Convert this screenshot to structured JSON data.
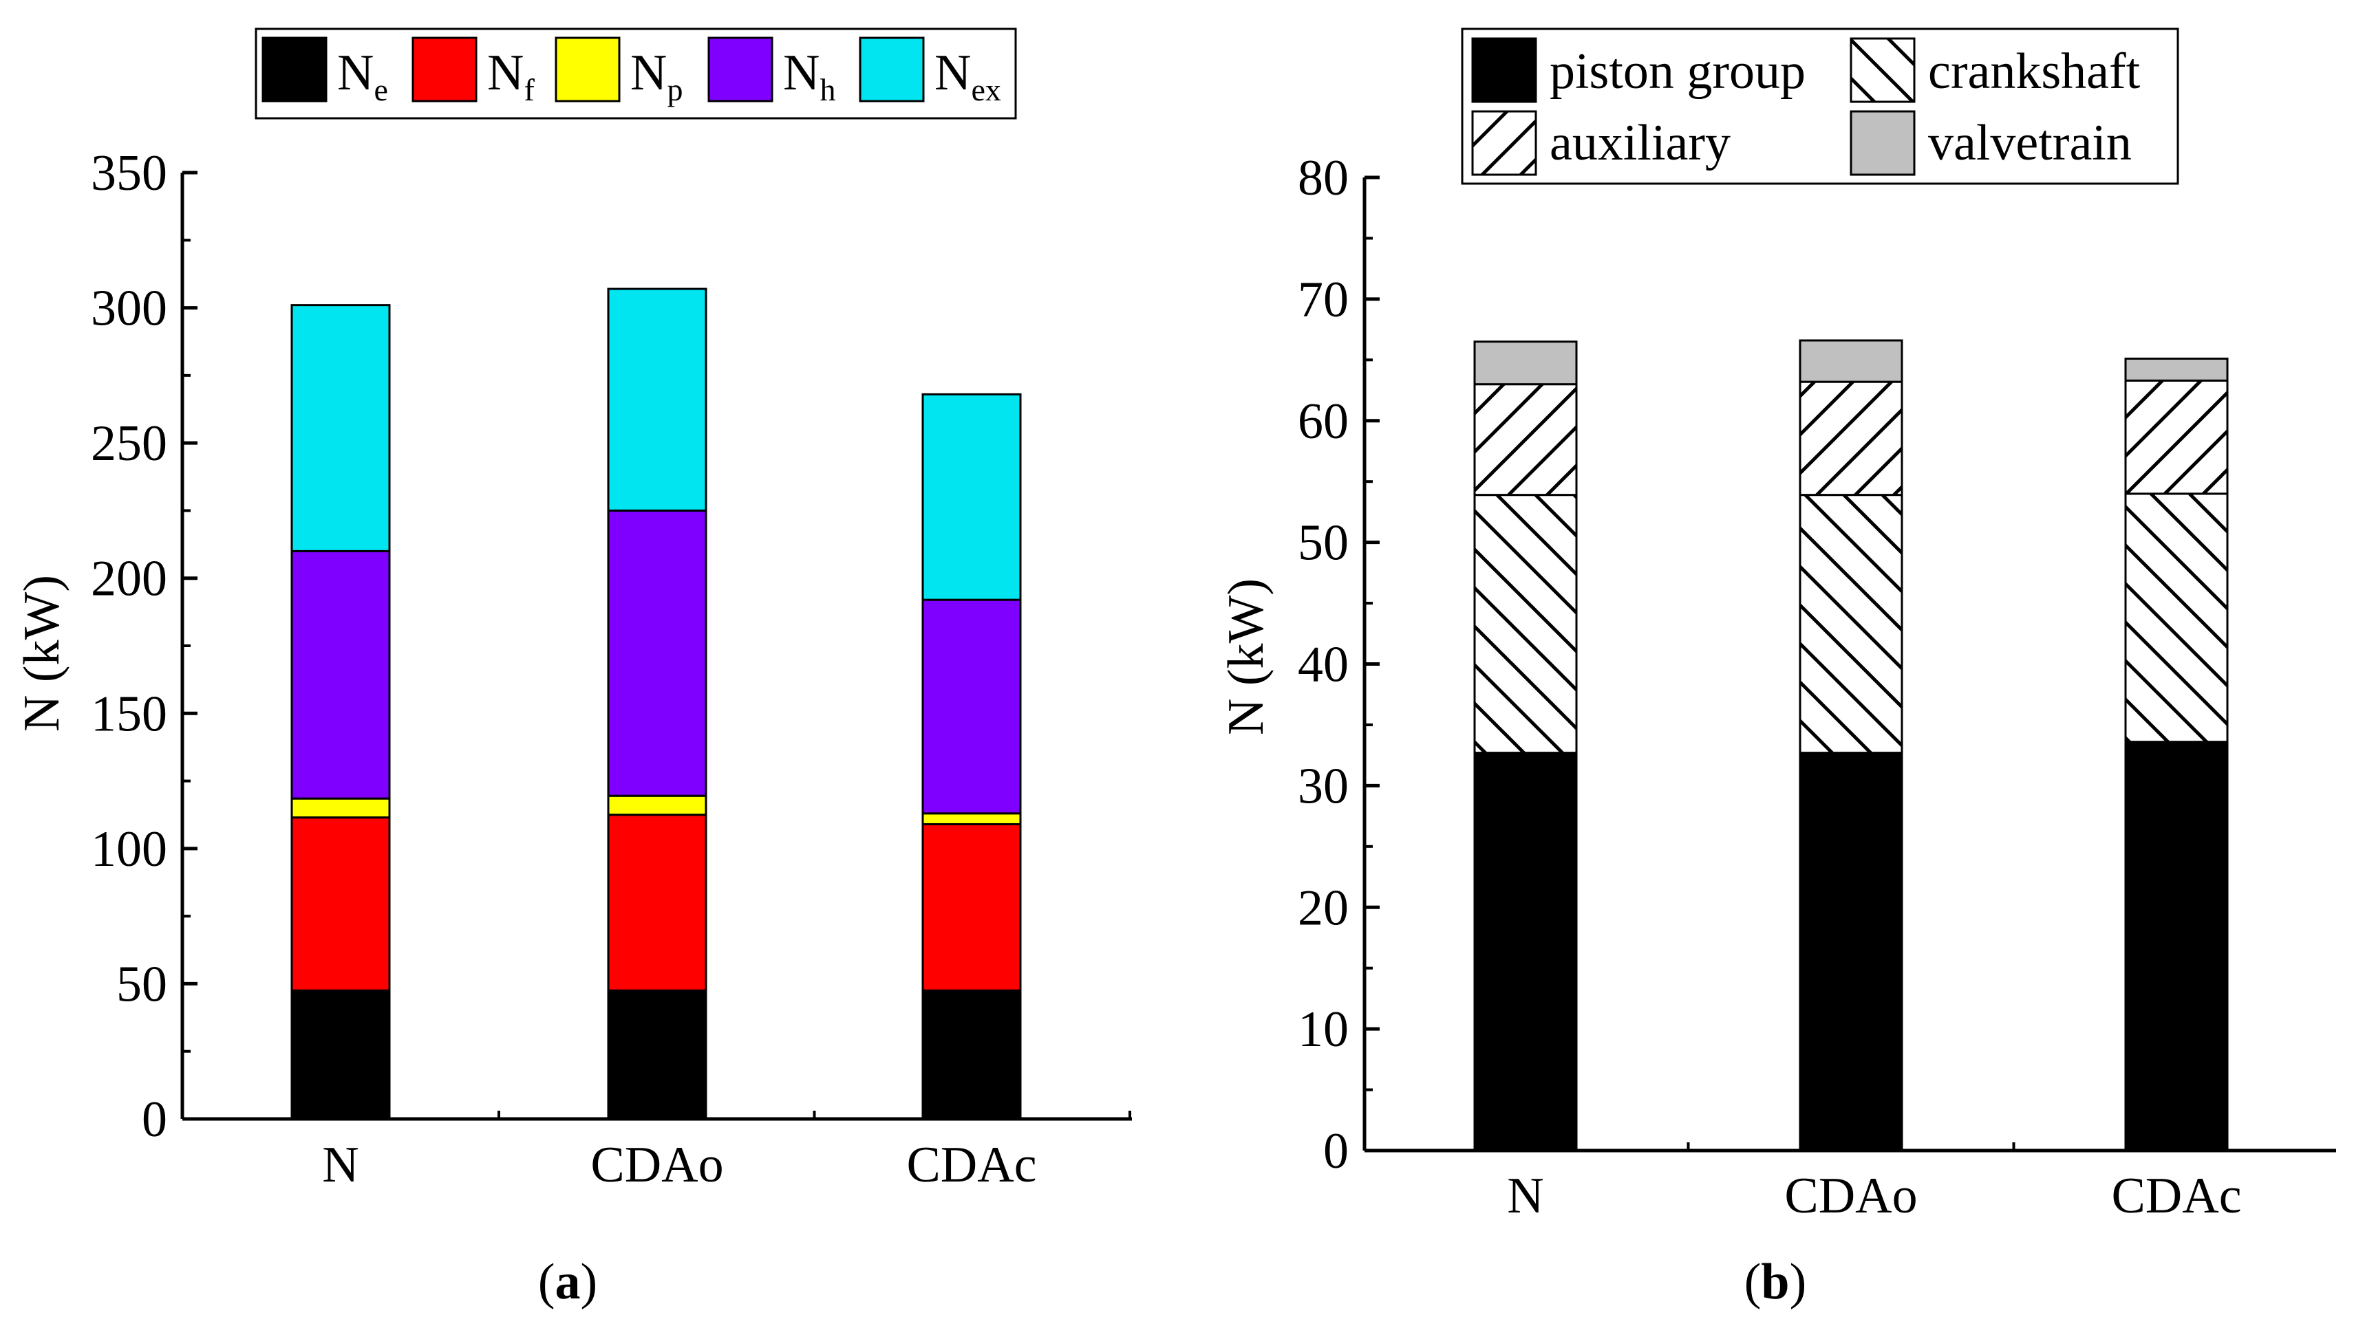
{
  "chart_data": [
    {
      "type": "bar",
      "stacked": true,
      "panel": "a",
      "categories": [
        "N",
        "CDAo",
        "CDAc"
      ],
      "ylabel": "N (kW)",
      "xlabel": "",
      "ylim": [
        0,
        350
      ],
      "yticks": [
        "0",
        "50",
        "100",
        "150",
        "200",
        "250",
        "300",
        "350"
      ],
      "grid": false,
      "legend_position": "top-center",
      "series": [
        {
          "name": "Ne",
          "base": "N",
          "sub": "e",
          "color": "#000000",
          "values": [
            47.5,
            47.5,
            47.5
          ]
        },
        {
          "name": "Nf",
          "base": "N",
          "sub": "f",
          "color": "#ff0000",
          "values": [
            64,
            65,
            61.5
          ]
        },
        {
          "name": "Np",
          "base": "N",
          "sub": "p",
          "color": "#ffff00",
          "values": [
            7,
            7,
            4
          ]
        },
        {
          "name": "Nh",
          "base": "N",
          "sub": "h",
          "color": "#8000ff",
          "values": [
            91.5,
            105.5,
            79
          ]
        },
        {
          "name": "Nex",
          "base": "N",
          "sub": "ex",
          "color": "#00e5f0",
          "values": [
            91,
            82,
            76
          ]
        }
      ]
    },
    {
      "type": "bar",
      "stacked": true,
      "panel": "b",
      "categories": [
        "N",
        "CDAo",
        "CDAc"
      ],
      "ylabel": "N (kW)",
      "xlabel": "",
      "ylim": [
        0,
        80
      ],
      "yticks": [
        "0",
        "10",
        "20",
        "30",
        "40",
        "50",
        "60",
        "70",
        "80"
      ],
      "grid": false,
      "legend_position": "top-center",
      "series": [
        {
          "name": "piston group",
          "pattern": "solid",
          "color": "#000000",
          "values": [
            32.7,
            32.7,
            33.6
          ]
        },
        {
          "name": "crankshaft",
          "pattern": "back-hatch",
          "color": "#ffffff",
          "values": [
            21.2,
            21.2,
            20.4
          ]
        },
        {
          "name": "auxiliary",
          "pattern": "forward-hatch",
          "color": "#ffffff",
          "values": [
            9.1,
            9.3,
            9.3
          ]
        },
        {
          "name": "valvetrain",
          "pattern": "solid",
          "color": "#c0c0c0",
          "values": [
            3.5,
            3.4,
            1.8
          ]
        }
      ]
    }
  ],
  "panel_labels": [
    "a",
    "b"
  ]
}
